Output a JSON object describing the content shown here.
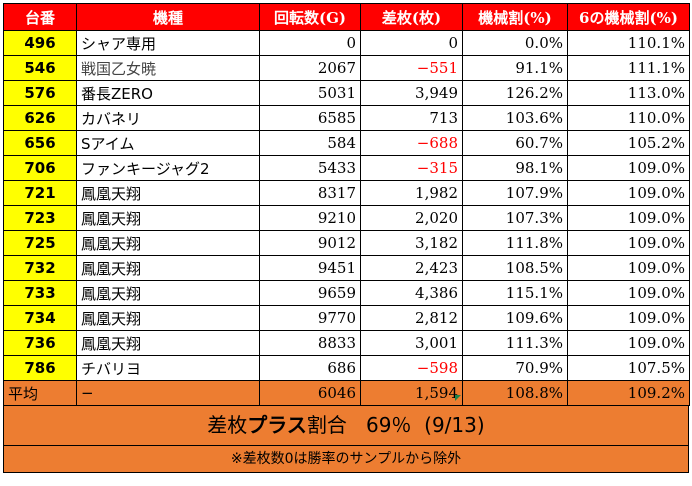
{
  "headers": [
    "台番",
    "機種",
    "回転数(G)",
    "差枚(枚)",
    "機械割(%)",
    "6の機械割(%)"
  ],
  "rows": [
    {
      "no": "496",
      "name": "シャア専用",
      "spins": "0",
      "diff": "0",
      "rate": "0.0%",
      "rate6": "110.1%",
      "neg": false
    },
    {
      "no": "546",
      "name": "戦国乙女暁",
      "spins": "2067",
      "diff": "−551",
      "rate": "91.1%",
      "rate6": "111.1%",
      "neg": true
    },
    {
      "no": "576",
      "name": "番長ZERO",
      "spins": "5031",
      "diff": "3,949",
      "rate": "126.2%",
      "rate6": "113.0%",
      "neg": false
    },
    {
      "no": "626",
      "name": "カバネリ",
      "spins": "6585",
      "diff": "713",
      "rate": "103.6%",
      "rate6": "110.0%",
      "neg": false
    },
    {
      "no": "656",
      "name": "Sアイム",
      "spins": "584",
      "diff": "−688",
      "rate": "60.7%",
      "rate6": "105.2%",
      "neg": true
    },
    {
      "no": "706",
      "name": "ファンキージャグ2",
      "spins": "5433",
      "diff": "−315",
      "rate": "98.1%",
      "rate6": "109.0%",
      "neg": true
    },
    {
      "no": "721",
      "name": "鳳凰天翔",
      "spins": "8317",
      "diff": "1,982",
      "rate": "107.9%",
      "rate6": "109.0%",
      "neg": false
    },
    {
      "no": "723",
      "name": "鳳凰天翔",
      "spins": "9210",
      "diff": "2,020",
      "rate": "107.3%",
      "rate6": "109.0%",
      "neg": false
    },
    {
      "no": "725",
      "name": "鳳凰天翔",
      "spins": "9012",
      "diff": "3,182",
      "rate": "111.8%",
      "rate6": "109.0%",
      "neg": false
    },
    {
      "no": "732",
      "name": "鳳凰天翔",
      "spins": "9451",
      "diff": "2,423",
      "rate": "108.5%",
      "rate6": "109.0%",
      "neg": false
    },
    {
      "no": "733",
      "name": "鳳凰天翔",
      "spins": "9659",
      "diff": "4,386",
      "rate": "115.1%",
      "rate6": "109.0%",
      "neg": false
    },
    {
      "no": "734",
      "name": "鳳凰天翔",
      "spins": "9770",
      "diff": "2,812",
      "rate": "109.6%",
      "rate6": "109.0%",
      "neg": false
    },
    {
      "no": "736",
      "name": "鳳凰天翔",
      "spins": "8833",
      "diff": "3,001",
      "rate": "111.3%",
      "rate6": "109.0%",
      "neg": false
    },
    {
      "no": "786",
      "name": "チバリヨ",
      "spins": "686",
      "diff": "−598",
      "rate": "70.9%",
      "rate6": "107.5%",
      "neg": true
    }
  ],
  "average": {
    "label": "平均",
    "name": "−",
    "spins": "6046",
    "diff": "1,594",
    "rate": "108.8%",
    "rate6": "109.2%"
  },
  "summary": {
    "label_a": "差枚",
    "label_b": "プラス",
    "label_c": "割合",
    "percent": "69％",
    "ratio": "(9/13)"
  },
  "note": "※差枚数0は勝率のサンプルから除外",
  "colors": {
    "header": "#ff0000",
    "number_cell": "#ffff00",
    "average_row": "#ed7d31",
    "negative": "#ff0000"
  }
}
